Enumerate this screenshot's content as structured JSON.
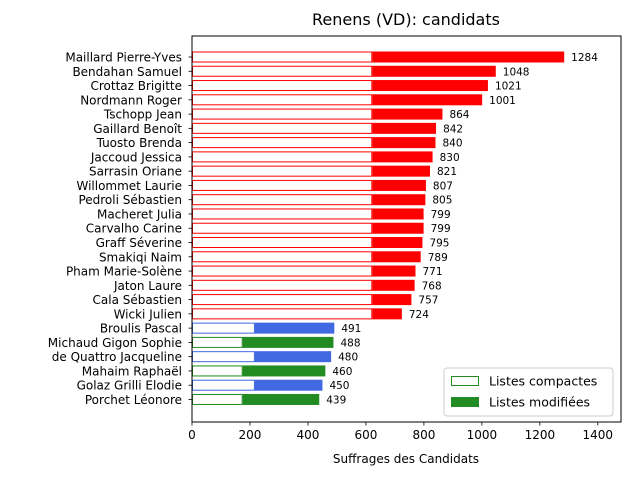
{
  "chart_data": {
    "type": "bar",
    "orientation": "horizontal",
    "stacked": true,
    "title": "Renens (VD): candidats",
    "xlabel": "Suffrages des Candidats",
    "ylabel": "",
    "xlim": [
      0,
      1480
    ],
    "xticks": [
      0,
      200,
      400,
      600,
      800,
      1000,
      1200,
      1400
    ],
    "grid": false,
    "legend_position": "bottom-right",
    "legend": [
      {
        "label": "Listes compactes",
        "style": "outline",
        "color": "#228b22"
      },
      {
        "label": "Listes modifiées",
        "style": "filled",
        "color": "#228b22"
      }
    ],
    "candidates": [
      {
        "name": "Maillard Pierre-Yves",
        "compactes": 622,
        "modifiees": 662,
        "total": 1284,
        "color": "#ff0000"
      },
      {
        "name": "Bendahan Samuel",
        "compactes": 622,
        "modifiees": 426,
        "total": 1048,
        "color": "#ff0000"
      },
      {
        "name": "Crottaz Brigitte",
        "compactes": 622,
        "modifiees": 399,
        "total": 1021,
        "color": "#ff0000"
      },
      {
        "name": "Nordmann Roger",
        "compactes": 622,
        "modifiees": 379,
        "total": 1001,
        "color": "#ff0000"
      },
      {
        "name": "Tschopp Jean",
        "compactes": 622,
        "modifiees": 242,
        "total": 864,
        "color": "#ff0000"
      },
      {
        "name": "Gaillard Benoît",
        "compactes": 622,
        "modifiees": 220,
        "total": 842,
        "color": "#ff0000"
      },
      {
        "name": "Tuosto Brenda",
        "compactes": 622,
        "modifiees": 218,
        "total": 840,
        "color": "#ff0000"
      },
      {
        "name": "Jaccoud Jessica",
        "compactes": 622,
        "modifiees": 208,
        "total": 830,
        "color": "#ff0000"
      },
      {
        "name": "Sarrasin Oriane",
        "compactes": 622,
        "modifiees": 199,
        "total": 821,
        "color": "#ff0000"
      },
      {
        "name": "Willommet Laurie",
        "compactes": 622,
        "modifiees": 185,
        "total": 807,
        "color": "#ff0000"
      },
      {
        "name": "Pedroli Sébastien",
        "compactes": 622,
        "modifiees": 183,
        "total": 805,
        "color": "#ff0000"
      },
      {
        "name": "Macheret Julia",
        "compactes": 622,
        "modifiees": 177,
        "total": 799,
        "color": "#ff0000"
      },
      {
        "name": "Carvalho Carine",
        "compactes": 622,
        "modifiees": 177,
        "total": 799,
        "color": "#ff0000"
      },
      {
        "name": "Graff Séverine",
        "compactes": 622,
        "modifiees": 173,
        "total": 795,
        "color": "#ff0000"
      },
      {
        "name": "Smakiqi Naim",
        "compactes": 622,
        "modifiees": 167,
        "total": 789,
        "color": "#ff0000"
      },
      {
        "name": "Pham Marie-Solène",
        "compactes": 622,
        "modifiees": 149,
        "total": 771,
        "color": "#ff0000"
      },
      {
        "name": "Jaton Laure",
        "compactes": 622,
        "modifiees": 146,
        "total": 768,
        "color": "#ff0000"
      },
      {
        "name": "Cala Sébastien",
        "compactes": 622,
        "modifiees": 135,
        "total": 757,
        "color": "#ff0000"
      },
      {
        "name": "Wicki Julien",
        "compactes": 622,
        "modifiees": 102,
        "total": 724,
        "color": "#ff0000"
      },
      {
        "name": "Broulis Pascal",
        "compactes": 217,
        "modifiees": 274,
        "total": 491,
        "color": "#4169e1"
      },
      {
        "name": "Michaud Gigon Sophie",
        "compactes": 175,
        "modifiees": 313,
        "total": 488,
        "color": "#228b22"
      },
      {
        "name": "de Quattro Jacqueline",
        "compactes": 217,
        "modifiees": 263,
        "total": 480,
        "color": "#4169e1"
      },
      {
        "name": "Mahaim Raphaël",
        "compactes": 175,
        "modifiees": 285,
        "total": 460,
        "color": "#228b22"
      },
      {
        "name": "Golaz Grilli Elodie",
        "compactes": 217,
        "modifiees": 233,
        "total": 450,
        "color": "#4169e1"
      },
      {
        "name": "Porchet Léonore",
        "compactes": 175,
        "modifiees": 264,
        "total": 439,
        "color": "#228b22"
      }
    ]
  }
}
